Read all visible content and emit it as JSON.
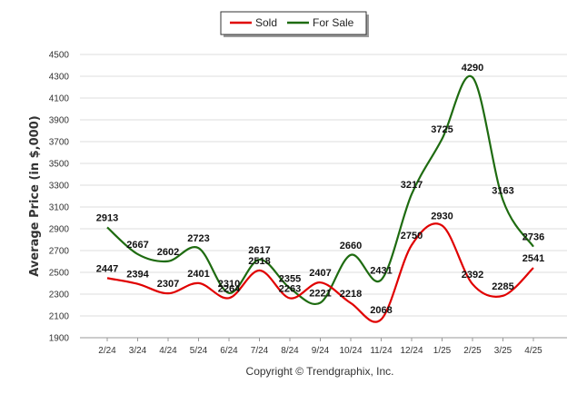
{
  "chart_data": {
    "type": "line",
    "title": "",
    "xlabel": "",
    "ylabel": "Average Price (in $,000)",
    "categories": [
      "2/24",
      "3/24",
      "4/24",
      "5/24",
      "6/24",
      "7/24",
      "8/24",
      "9/24",
      "10/24",
      "11/24",
      "12/24",
      "1/25",
      "2/25",
      "3/25",
      "4/25"
    ],
    "ylim": [
      1900,
      4500
    ],
    "yticks": [
      1900,
      2100,
      2300,
      2500,
      2700,
      2900,
      3100,
      3300,
      3500,
      3700,
      3900,
      4100,
      4300,
      4500
    ],
    "grid": true,
    "legend_position": "top-center",
    "series": [
      {
        "name": "Sold",
        "color": "#e00000",
        "values": [
          2447,
          2394,
          2307,
          2401,
          2264,
          2518,
          2263,
          2407,
          2218,
          2068,
          2750,
          2930,
          2392,
          2285,
          2541
        ]
      },
      {
        "name": "For Sale",
        "color": "#1e6b10",
        "values": [
          2913,
          2667,
          2602,
          2723,
          2310,
          2617,
          2355,
          2221,
          2660,
          2431,
          3217,
          3725,
          4290,
          3163,
          2736
        ]
      }
    ],
    "footer": "Copyright © Trendgraphix, Inc."
  }
}
